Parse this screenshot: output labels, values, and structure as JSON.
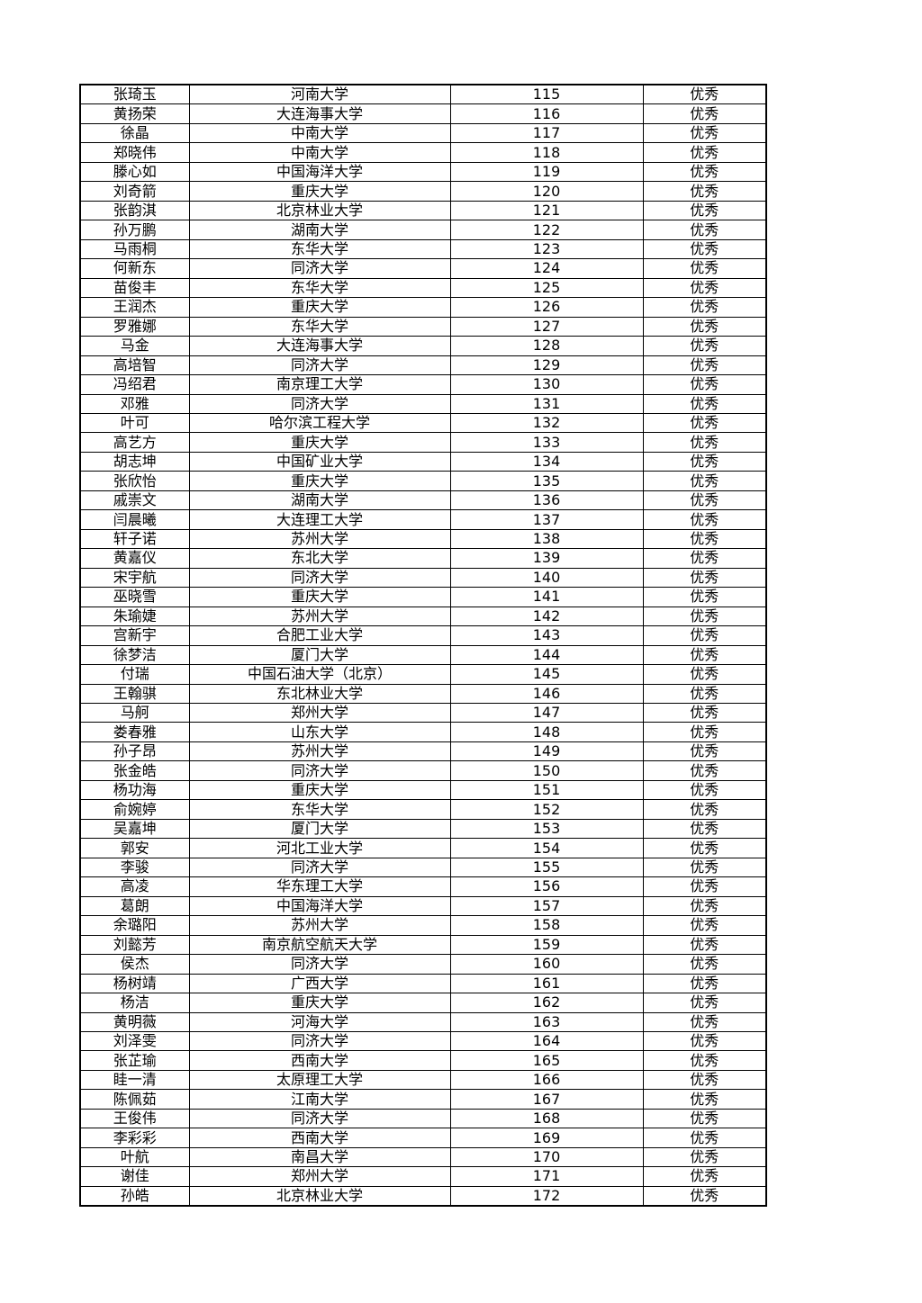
{
  "table": {
    "rows": [
      [
        "张琦玉",
        "河南大学",
        115,
        "优秀"
      ],
      [
        "黄扬荣",
        "大连海事大学",
        116,
        "优秀"
      ],
      [
        "徐晶",
        "中南大学",
        117,
        "优秀"
      ],
      [
        "郑晓伟",
        "中南大学",
        118,
        "优秀"
      ],
      [
        "滕心如",
        "中国海洋大学",
        119,
        "优秀"
      ],
      [
        "刘奇箭",
        "重庆大学",
        120,
        "优秀"
      ],
      [
        "张韵淇",
        "北京林业大学",
        121,
        "优秀"
      ],
      [
        "孙万鹏",
        "湖南大学",
        122,
        "优秀"
      ],
      [
        "马雨桐",
        "东华大学",
        123,
        "优秀"
      ],
      [
        "何新东",
        "同济大学",
        124,
        "优秀"
      ],
      [
        "苗俊丰",
        "东华大学",
        125,
        "优秀"
      ],
      [
        "王润杰",
        "重庆大学",
        126,
        "优秀"
      ],
      [
        "罗雅娜",
        "东华大学",
        127,
        "优秀"
      ],
      [
        "马金",
        "大连海事大学",
        128,
        "优秀"
      ],
      [
        "高培智",
        "同济大学",
        129,
        "优秀"
      ],
      [
        "冯绍君",
        "南京理工大学",
        130,
        "优秀"
      ],
      [
        "邓雅",
        "同济大学",
        131,
        "优秀"
      ],
      [
        "叶可",
        "哈尔滨工程大学",
        132,
        "优秀"
      ],
      [
        "高艺方",
        "重庆大学",
        133,
        "优秀"
      ],
      [
        "胡志坤",
        "中国矿业大学",
        134,
        "优秀"
      ],
      [
        "张欣怡",
        "重庆大学",
        135,
        "优秀"
      ],
      [
        "戚崇文",
        "湖南大学",
        136,
        "优秀"
      ],
      [
        "闫晨曦",
        "大连理工大学",
        137,
        "优秀"
      ],
      [
        "轩子诺",
        "苏州大学",
        138,
        "优秀"
      ],
      [
        "黄嘉仪",
        "东北大学",
        139,
        "优秀"
      ],
      [
        "宋宇航",
        "同济大学",
        140,
        "优秀"
      ],
      [
        "巫晓雪",
        "重庆大学",
        141,
        "优秀"
      ],
      [
        "朱瑜婕",
        "苏州大学",
        142,
        "优秀"
      ],
      [
        "宫新宇",
        "合肥工业大学",
        143,
        "优秀"
      ],
      [
        "徐梦洁",
        "厦门大学",
        144,
        "优秀"
      ],
      [
        "付瑞",
        "中国石油大学（北京）",
        145,
        "优秀"
      ],
      [
        "王翰骐",
        "东北林业大学",
        146,
        "优秀"
      ],
      [
        "马舸",
        "郑州大学",
        147,
        "优秀"
      ],
      [
        "娄春雅",
        "山东大学",
        148,
        "优秀"
      ],
      [
        "孙子昂",
        "苏州大学",
        149,
        "优秀"
      ],
      [
        "张金皓",
        "同济大学",
        150,
        "优秀"
      ],
      [
        "杨功海",
        "重庆大学",
        151,
        "优秀"
      ],
      [
        "俞婉婷",
        "东华大学",
        152,
        "优秀"
      ],
      [
        "吴嘉坤",
        "厦门大学",
        153,
        "优秀"
      ],
      [
        "郭安",
        "河北工业大学",
        154,
        "优秀"
      ],
      [
        "李骏",
        "同济大学",
        155,
        "优秀"
      ],
      [
        "高凌",
        "华东理工大学",
        156,
        "优秀"
      ],
      [
        "葛朗",
        "中国海洋大学",
        157,
        "优秀"
      ],
      [
        "余璐阳",
        "苏州大学",
        158,
        "优秀"
      ],
      [
        "刘懿芳",
        "南京航空航天大学",
        159,
        "优秀"
      ],
      [
        "侯杰",
        "同济大学",
        160,
        "优秀"
      ],
      [
        "杨树靖",
        "广西大学",
        161,
        "优秀"
      ],
      [
        "杨洁",
        "重庆大学",
        162,
        "优秀"
      ],
      [
        "黄明薇",
        "河海大学",
        163,
        "优秀"
      ],
      [
        "刘泽雯",
        "同济大学",
        164,
        "优秀"
      ],
      [
        "张芷瑜",
        "西南大学",
        165,
        "优秀"
      ],
      [
        "眭一清",
        "太原理工大学",
        166,
        "优秀"
      ],
      [
        "陈佩茹",
        "江南大学",
        167,
        "优秀"
      ],
      [
        "王俊伟",
        "同济大学",
        168,
        "优秀"
      ],
      [
        "李彩彩",
        "西南大学",
        169,
        "优秀"
      ],
      [
        "叶航",
        "南昌大学",
        170,
        "优秀"
      ],
      [
        "谢佳",
        "郑州大学",
        171,
        "优秀"
      ],
      [
        "孙皓",
        "北京林业大学",
        172,
        "优秀"
      ]
    ]
  }
}
